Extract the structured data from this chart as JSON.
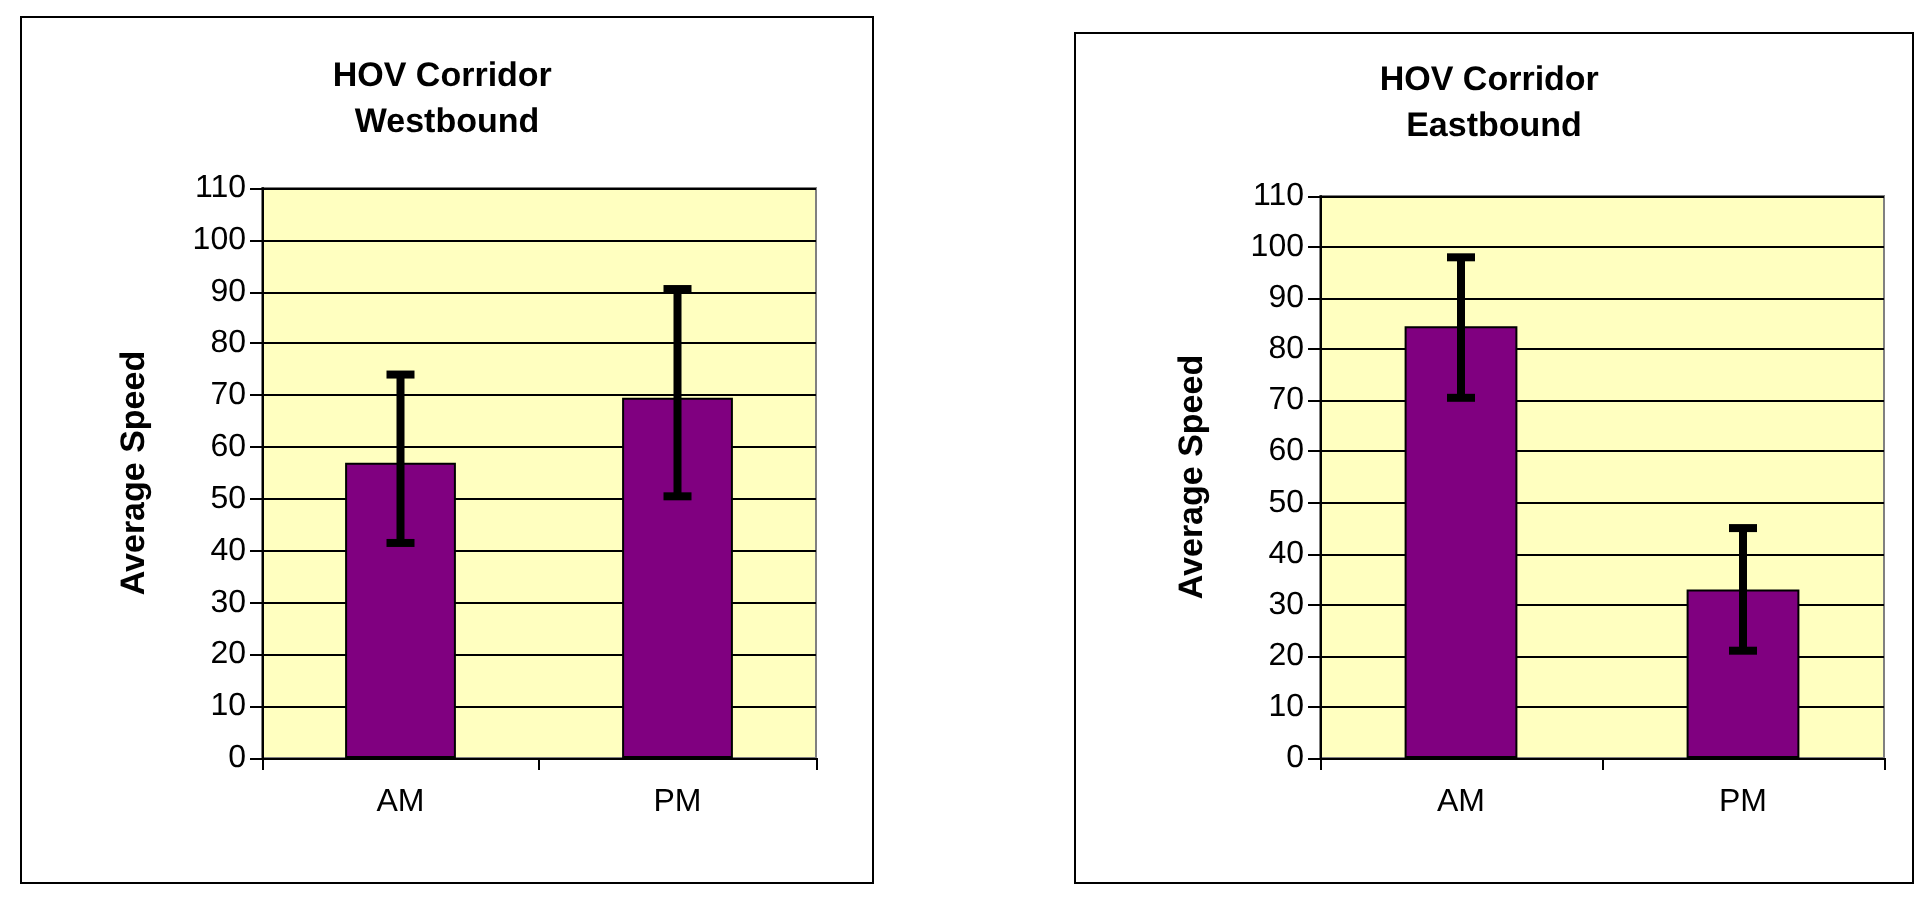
{
  "chart_data": [
    {
      "type": "bar",
      "title": "HOV Corridor Westbound",
      "ylabel": "Average Speed",
      "categories": [
        "AM",
        "PM"
      ],
      "values": [
        57,
        69.5
      ],
      "color": "#800080",
      "errors": [
        [
          41.5,
          74
        ],
        [
          50.5,
          90.5
        ]
      ],
      "ylim": [
        0,
        110
      ],
      "yticks": [
        0,
        10,
        20,
        30,
        40,
        50,
        60,
        70,
        80,
        90,
        100,
        110
      ],
      "grid": "y"
    },
    {
      "type": "bar",
      "title": "HOV Corridor Eastbound",
      "ylabel": "Average Speed",
      "categories": [
        "AM",
        "PM"
      ],
      "values": [
        84.5,
        33
      ],
      "color": "#800080",
      "errors": [
        [
          70.5,
          98
        ],
        [
          21,
          45
        ]
      ],
      "ylim": [
        0,
        110
      ],
      "yticks": [
        0,
        10,
        20,
        30,
        40,
        50,
        60,
        70,
        80,
        90,
        100,
        110
      ],
      "grid": "y"
    }
  ]
}
